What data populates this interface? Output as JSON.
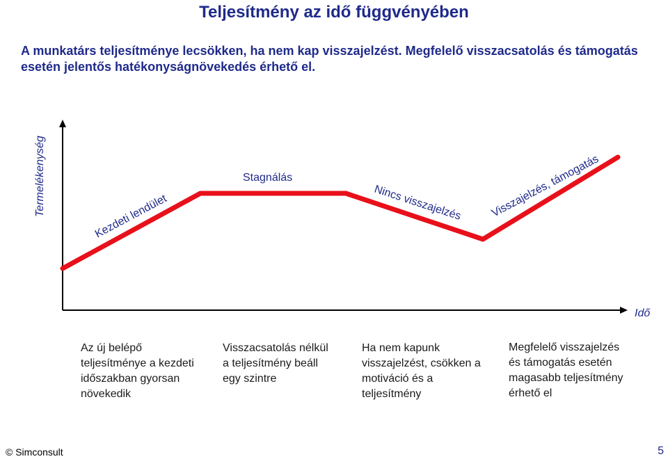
{
  "title": "Teljesítmény az idő függvényében",
  "subtitle": "A munkatárs teljesítménye lecsökken, ha nem kap visszajelzést. Megfelelő visszacsatolás és támogatás esetén jelentős hatékonyságnövekedés érhető el.",
  "diagram": {
    "y_axis_label": "Termelékenység",
    "x_axis_label": "Idő",
    "line_color": "#e8101a",
    "phases": [
      {
        "label": "Kezdeti lendület",
        "description": "Az új belépő teljesítménye a kezdeti időszakban gyorsan növekedik"
      },
      {
        "label": "Stagnálás",
        "description": "Visszacsatolás nélkül a teljesítmény beáll egy szintre"
      },
      {
        "label": "Nincs visszajelzés",
        "description": "Ha nem kapunk visszajelzést, csökken a motiváció és a teljesítmény"
      },
      {
        "label": "Visszajelzés, támogatás",
        "description": "Megfelelő visszajelzés és támogatás esetén magasabb teljesítmény érhető el"
      }
    ]
  },
  "footer": {
    "copyright": "© Simconsult",
    "page_number": "5"
  }
}
